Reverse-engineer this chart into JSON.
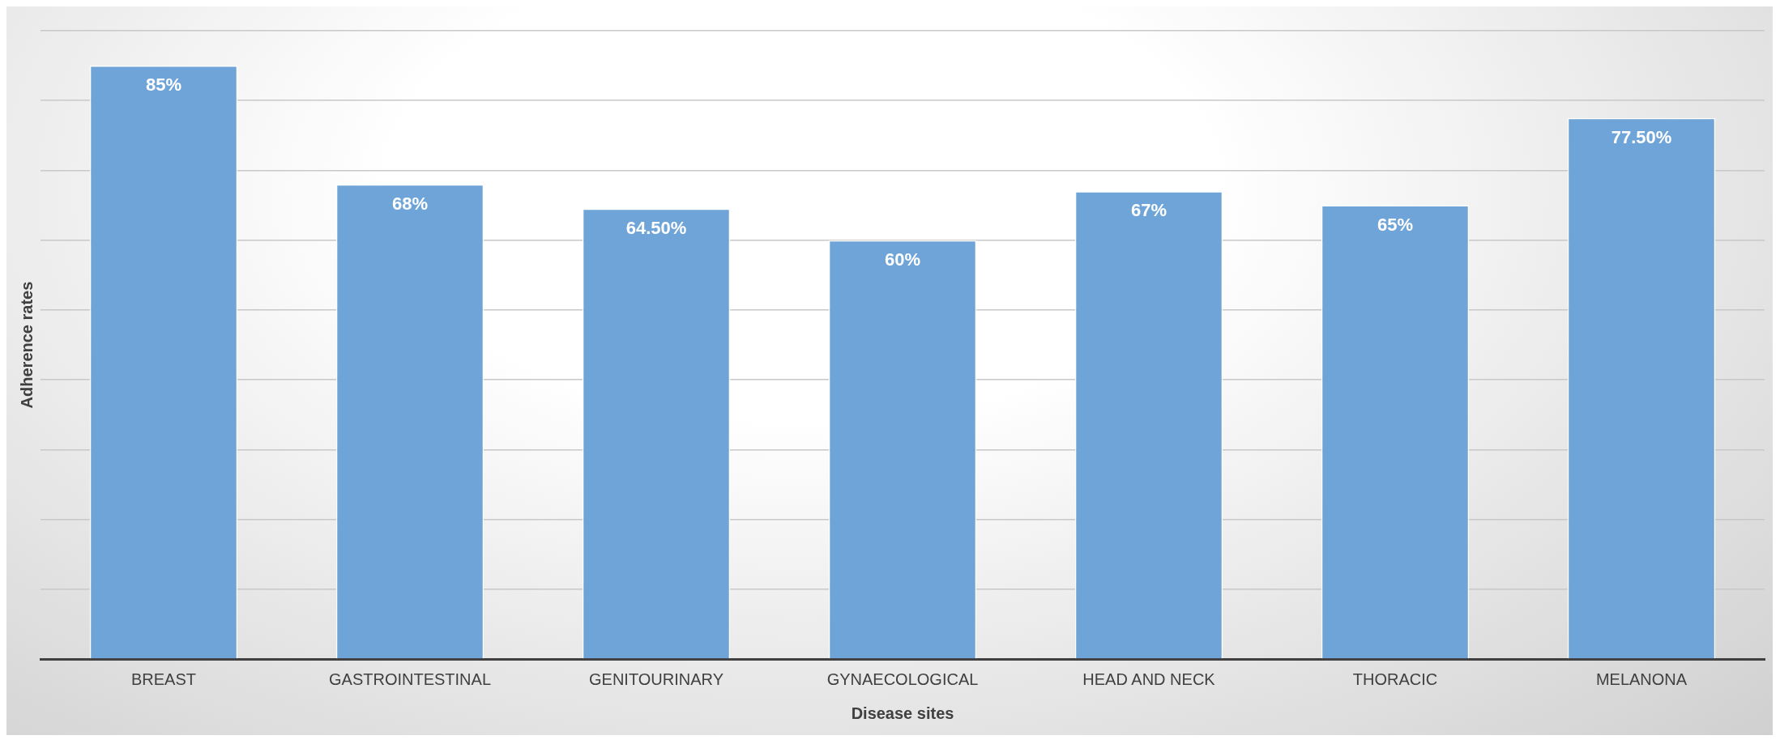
{
  "chart_data": {
    "type": "bar",
    "xlabel": "Disease sites",
    "ylabel": "Adherence rates",
    "categories": [
      "BREAST",
      "GASTROINTESTINAL",
      "GENITOURINARY",
      "GYNAECOLOGICAL",
      "HEAD AND NECK",
      "THORACIC",
      "MELANONA"
    ],
    "values": [
      85,
      68,
      64.5,
      60,
      67,
      65,
      77.5
    ],
    "value_labels": [
      "85%",
      "68%",
      "64.50%",
      "60%",
      "67%",
      "65%",
      "77.50%"
    ],
    "color": "#6fa4d8",
    "ylim": [
      0,
      90
    ],
    "yticks": [
      {
        "value": 0,
        "label": null
      },
      {
        "value": 10,
        "label": null
      },
      {
        "value": 20,
        "label": null
      },
      {
        "value": 30,
        "label": null
      },
      {
        "value": 40,
        "label": null
      },
      {
        "value": 50,
        "label": null
      },
      {
        "value": 60,
        "label": null
      },
      {
        "value": 70,
        "label": null
      },
      {
        "value": 80,
        "label": null
      },
      {
        "value": 90,
        "label": null
      }
    ],
    "tick_labels": "x",
    "grid": "y",
    "legend": false
  }
}
